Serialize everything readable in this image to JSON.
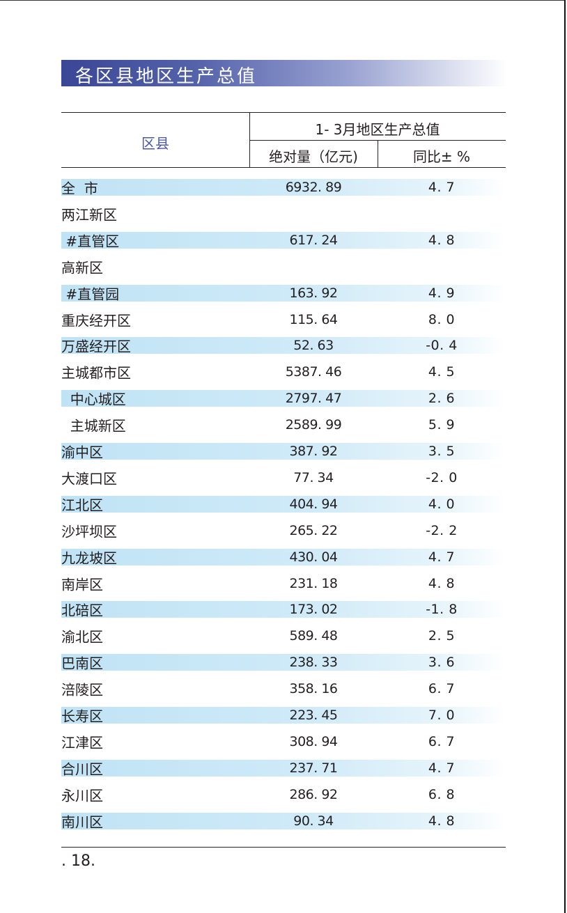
{
  "title": "各区县地区生产总值",
  "table": {
    "header": {
      "county": "区县",
      "group": "1- 3月地区生产总值",
      "absolute": "绝对量（亿元)",
      "yoy": "同比± %"
    },
    "rows": [
      {
        "name": "全  市",
        "abs": "6932. 89",
        "yoy": "4. 7"
      },
      {
        "name": "两江新区",
        "abs": "",
        "yoy": ""
      },
      {
        "name": " #直管区",
        "abs": "617. 24",
        "yoy": "4. 8"
      },
      {
        "name": "高新区",
        "abs": "",
        "yoy": ""
      },
      {
        "name": " #直管园",
        "abs": "163. 92",
        "yoy": "4. 9"
      },
      {
        "name": "重庆经开区",
        "abs": "115. 64",
        "yoy": "8. 0"
      },
      {
        "name": "万盛经开区",
        "abs": "52. 63",
        "yoy": "-0. 4"
      },
      {
        "name": "主城都市区",
        "abs": "5387. 46",
        "yoy": "4. 5"
      },
      {
        "name": "  中心城区",
        "abs": "2797. 47",
        "yoy": "2. 6"
      },
      {
        "name": "  主城新区",
        "abs": "2589. 99",
        "yoy": "5. 9"
      },
      {
        "name": "渝中区",
        "abs": "387. 92",
        "yoy": "3. 5"
      },
      {
        "name": "大渡口区",
        "abs": "77. 34",
        "yoy": "-2. 0"
      },
      {
        "name": "江北区",
        "abs": "404. 94",
        "yoy": "4. 0"
      },
      {
        "name": "沙坪坝区",
        "abs": "265. 22",
        "yoy": "-2. 2"
      },
      {
        "name": "九龙坡区",
        "abs": "430. 04",
        "yoy": "4. 7"
      },
      {
        "name": "南岸区",
        "abs": "231. 18",
        "yoy": "4. 8"
      },
      {
        "name": "北碚区",
        "abs": "173. 02",
        "yoy": "-1. 8"
      },
      {
        "name": "渝北区",
        "abs": "589. 48",
        "yoy": "2. 5"
      },
      {
        "name": "巴南区",
        "abs": "238. 33",
        "yoy": "3. 6"
      },
      {
        "name": "涪陵区",
        "abs": "358. 16",
        "yoy": "6. 7"
      },
      {
        "name": "长寿区",
        "abs": "223. 45",
        "yoy": "7. 0"
      },
      {
        "name": "江津区",
        "abs": "308. 94",
        "yoy": "6. 7"
      },
      {
        "name": "合川区",
        "abs": "237. 71",
        "yoy": "4. 7"
      },
      {
        "name": "永川区",
        "abs": "286. 92",
        "yoy": "6. 8"
      },
      {
        "name": "南川区",
        "abs": "90. 34",
        "yoy": "4. 8"
      }
    ]
  },
  "footer": {
    "page_number": ". 18."
  },
  "colors": {
    "title_band": "#3a4696",
    "row_highlight": "#bfe3f5",
    "header_county_text": "#4a58a8"
  }
}
